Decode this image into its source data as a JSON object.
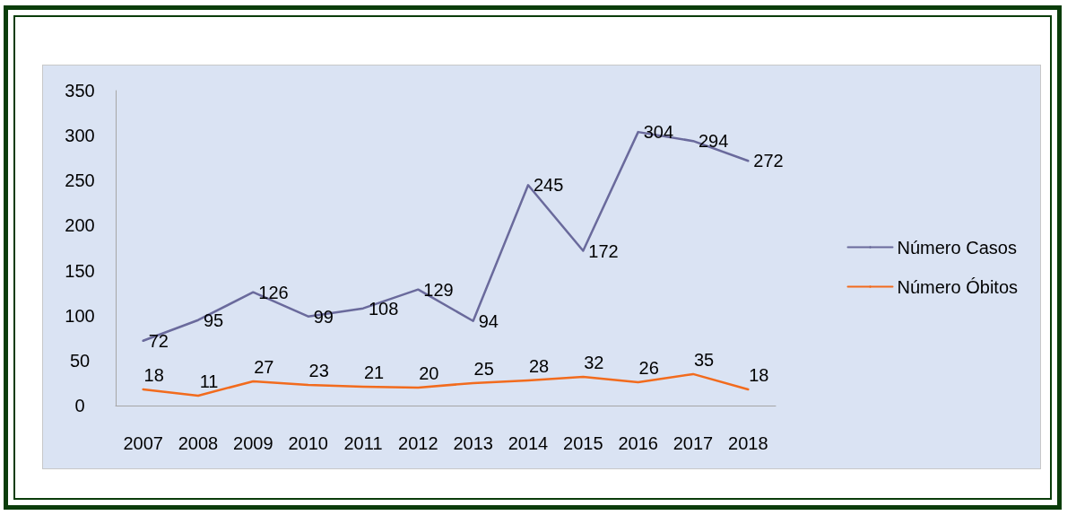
{
  "chart_data": {
    "type": "line",
    "categories": [
      "2007",
      "2008",
      "2009",
      "2010",
      "2011",
      "2012",
      "2013",
      "2014",
      "2015",
      "2016",
      "2017",
      "2018"
    ],
    "series": [
      {
        "name": "Número Casos",
        "color": "#6a6a9c",
        "values": [
          72,
          95,
          126,
          99,
          108,
          129,
          94,
          245,
          172,
          304,
          294,
          272
        ]
      },
      {
        "name": "Número Óbitos",
        "color": "#f26b1d",
        "values": [
          18,
          11,
          27,
          23,
          21,
          20,
          25,
          28,
          32,
          26,
          35,
          18
        ]
      }
    ],
    "ylim": [
      0,
      350
    ],
    "yticks": [
      0,
      50,
      100,
      150,
      200,
      250,
      300,
      350
    ],
    "data_labels": true,
    "legend": "right",
    "grid": false,
    "marker": "none"
  }
}
